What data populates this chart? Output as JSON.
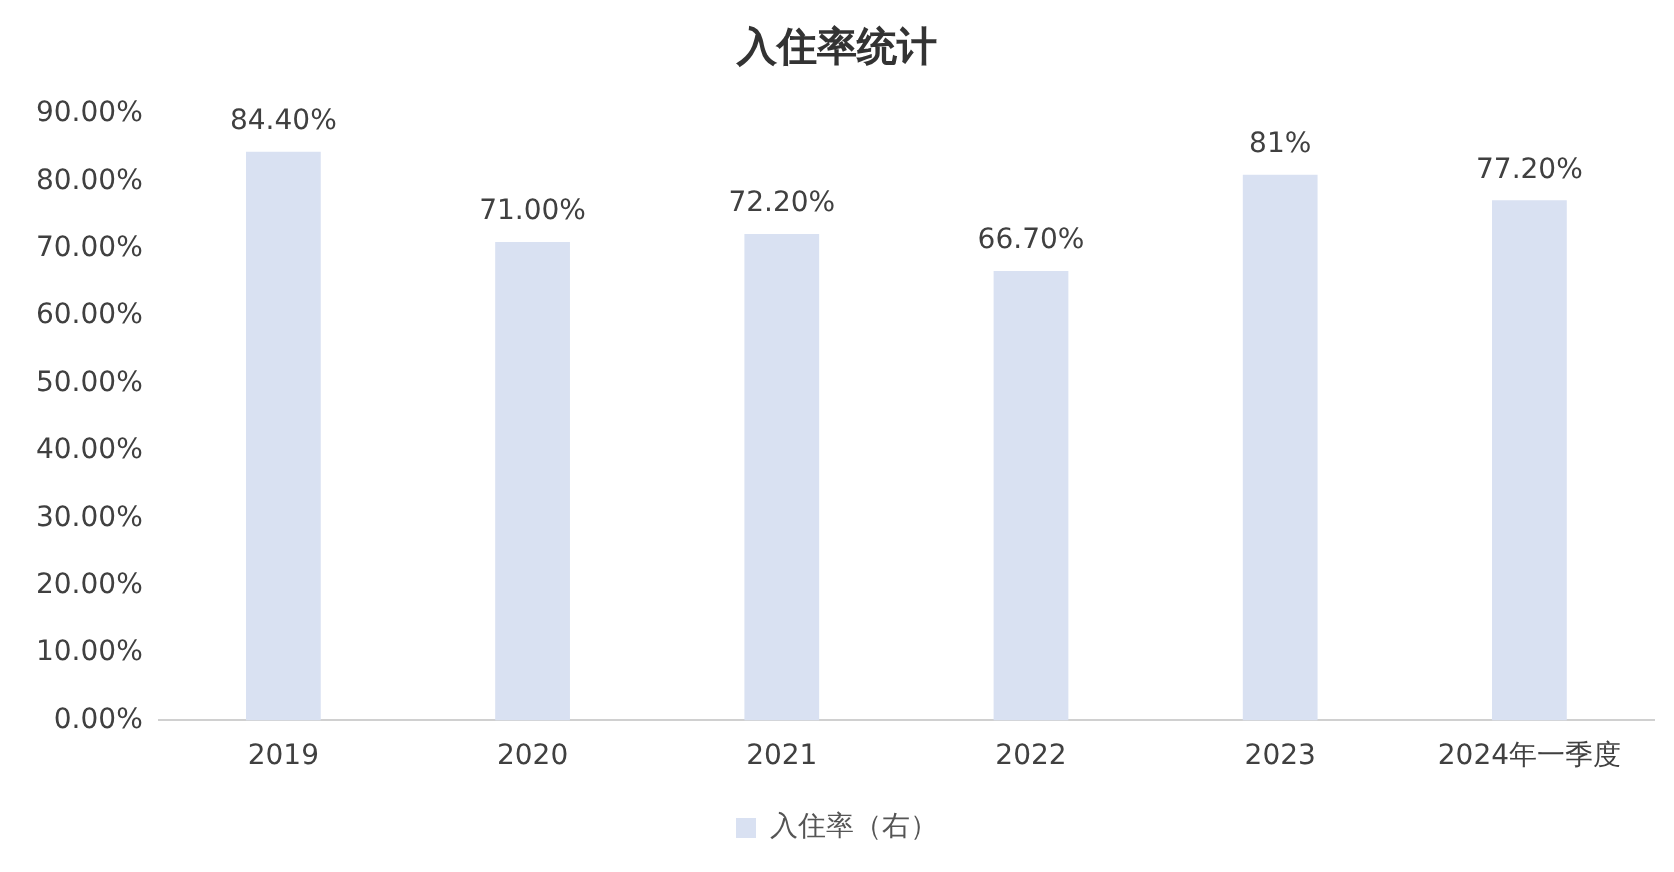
{
  "chart_data": {
    "type": "bar",
    "title": "入住率统计",
    "categories": [
      "2019",
      "2020",
      "2021",
      "2022",
      "2023",
      "2024年一季度"
    ],
    "series": [
      {
        "name": "入住率（右）",
        "color": "#d9e1f2",
        "values": [
          84.4,
          71,
          72.2,
          66.7,
          81,
          77.2
        ],
        "value_labels": [
          "84.40%",
          "71.00%",
          "72.20%",
          "66.70%",
          "81%",
          "77.20%"
        ]
      }
    ],
    "ylim": [
      0,
      90
    ],
    "yticks": [
      {
        "value": 0,
        "label": "0.00%"
      },
      {
        "value": 10,
        "label": "10.00%"
      },
      {
        "value": 20,
        "label": "20.00%"
      },
      {
        "value": 30,
        "label": "30.00%"
      },
      {
        "value": 40,
        "label": "40.00%"
      },
      {
        "value": 50,
        "label": "50.00%"
      },
      {
        "value": 60,
        "label": "60.00%"
      },
      {
        "value": 70,
        "label": "70.00%"
      },
      {
        "value": 80,
        "label": "80.00%"
      },
      {
        "value": 90,
        "label": "90.00%"
      }
    ],
    "grid": false,
    "legend": "bottom"
  }
}
